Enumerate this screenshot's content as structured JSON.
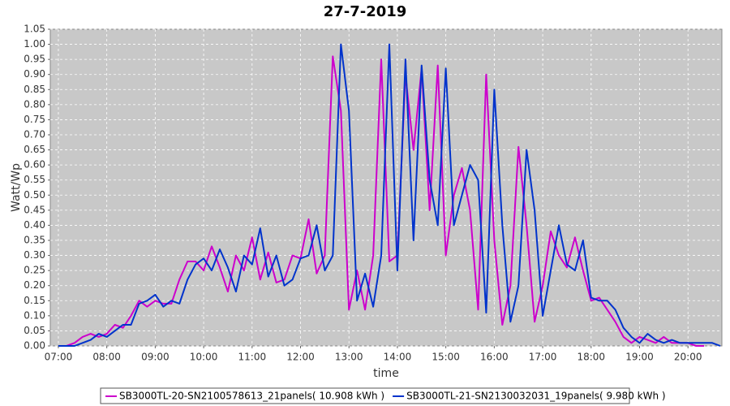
{
  "chart_data": {
    "type": "line",
    "title": "27-7-2019",
    "x_label": "time",
    "y_label": "Watt/Wp",
    "x": [
      "07:00",
      "07:10",
      "07:20",
      "07:30",
      "07:40",
      "07:50",
      "08:00",
      "08:10",
      "08:20",
      "08:30",
      "08:40",
      "08:50",
      "09:00",
      "09:10",
      "09:20",
      "09:30",
      "09:40",
      "09:50",
      "10:00",
      "10:10",
      "10:20",
      "10:30",
      "10:40",
      "10:50",
      "11:00",
      "11:10",
      "11:20",
      "11:30",
      "11:40",
      "11:50",
      "12:00",
      "12:10",
      "12:20",
      "12:30",
      "12:40",
      "12:50",
      "13:00",
      "13:10",
      "13:20",
      "13:30",
      "13:40",
      "13:50",
      "14:00",
      "14:10",
      "14:20",
      "14:30",
      "14:40",
      "14:50",
      "15:00",
      "15:10",
      "15:20",
      "15:30",
      "15:40",
      "15:50",
      "16:00",
      "16:10",
      "16:20",
      "16:30",
      "16:40",
      "16:50",
      "17:00",
      "17:10",
      "17:20",
      "17:30",
      "17:40",
      "17:50",
      "18:00",
      "18:10",
      "18:20",
      "18:30",
      "18:40",
      "18:50",
      "19:00",
      "19:10",
      "19:20",
      "19:30",
      "19:40",
      "19:50",
      "20:00",
      "20:10",
      "20:20",
      "20:30",
      "20:40"
    ],
    "series": [
      {
        "name": "SB3000TL-20-SN2100578613_21panels( 10.908 kWh )",
        "color": "#cc00cc",
        "values": [
          0,
          0,
          0.01,
          0.03,
          0.04,
          0.03,
          0.04,
          0.07,
          0.06,
          0.1,
          0.15,
          0.13,
          0.15,
          0.14,
          0.14,
          0.22,
          0.28,
          0.28,
          0.25,
          0.33,
          0.26,
          0.18,
          0.3,
          0.25,
          0.36,
          0.22,
          0.31,
          0.21,
          0.22,
          0.3,
          0.29,
          0.42,
          0.24,
          0.3,
          0.96,
          0.78,
          0.12,
          0.25,
          0.12,
          0.3,
          0.95,
          0.28,
          0.3,
          0.9,
          0.65,
          0.92,
          0.45,
          0.93,
          0.3,
          0.5,
          0.59,
          0.45,
          0.12,
          0.9,
          0.35,
          0.07,
          0.2,
          0.66,
          0.4,
          0.08,
          0.2,
          0.38,
          0.3,
          0.26,
          0.36,
          0.25,
          0.15,
          0.16,
          0.12,
          0.08,
          0.03,
          0.01,
          0.03,
          0.02,
          0.01,
          0.03,
          0.01,
          0.01,
          0.01,
          0,
          0,
          null,
          null
        ]
      },
      {
        "name": "SB3000TL-21-SN2130032031_19panels( 9.980 kWh )",
        "color": "#0033cc",
        "values": [
          0,
          0,
          0,
          0.01,
          0.02,
          0.04,
          0.03,
          0.05,
          0.07,
          0.07,
          0.14,
          0.15,
          0.17,
          0.13,
          0.15,
          0.14,
          0.22,
          0.27,
          0.29,
          0.25,
          0.32,
          0.26,
          0.18,
          0.3,
          0.27,
          0.39,
          0.23,
          0.3,
          0.2,
          0.22,
          0.29,
          0.3,
          0.4,
          0.25,
          0.3,
          1.0,
          0.78,
          0.15,
          0.24,
          0.13,
          0.3,
          1.0,
          0.25,
          0.95,
          0.35,
          0.93,
          0.55,
          0.4,
          0.92,
          0.4,
          0.5,
          0.6,
          0.55,
          0.11,
          0.85,
          0.4,
          0.08,
          0.2,
          0.65,
          0.45,
          0.1,
          0.25,
          0.4,
          0.27,
          0.25,
          0.35,
          0.16,
          0.15,
          0.15,
          0.12,
          0.06,
          0.03,
          0.01,
          0.04,
          0.02,
          0.01,
          0.02,
          0.01,
          0.01,
          0.01,
          0.01,
          0.01,
          0
        ]
      }
    ],
    "xlim": [
      "06:50",
      "20:42"
    ],
    "xticks": [
      "07:00",
      "08:00",
      "09:00",
      "10:00",
      "11:00",
      "12:00",
      "13:00",
      "14:00",
      "15:00",
      "16:00",
      "17:00",
      "18:00",
      "19:00",
      "20:00"
    ],
    "ylim": [
      0,
      1.05
    ],
    "yticks": [
      {
        "value": 0,
        "label": "0.00"
      },
      {
        "value": 0.05,
        "label": "0.05"
      },
      {
        "value": 0.1,
        "label": "0.10"
      },
      {
        "value": 0.15,
        "label": "0.15"
      },
      {
        "value": 0.2,
        "label": "0.20"
      },
      {
        "value": 0.25,
        "label": "0.25"
      },
      {
        "value": 0.3,
        "label": "0.30"
      },
      {
        "value": 0.35,
        "label": "0.35"
      },
      {
        "value": 0.4,
        "label": "0.40"
      },
      {
        "value": 0.45,
        "label": "0.45"
      },
      {
        "value": 0.5,
        "label": "0.50"
      },
      {
        "value": 0.55,
        "label": "0.55"
      },
      {
        "value": 0.6,
        "label": "0.60"
      },
      {
        "value": 0.65,
        "label": "0.65"
      },
      {
        "value": 0.7,
        "label": "0.70"
      },
      {
        "value": 0.75,
        "label": "0.75"
      },
      {
        "value": 0.8,
        "label": "0.80"
      },
      {
        "value": 0.85,
        "label": "0.85"
      },
      {
        "value": 0.9,
        "label": "0.90"
      },
      {
        "value": 0.95,
        "label": "0.95"
      },
      {
        "value": 1,
        "label": "1.00"
      },
      {
        "value": 1.05,
        "label": "1.05"
      }
    ],
    "grid": true,
    "legend": "bottom"
  }
}
